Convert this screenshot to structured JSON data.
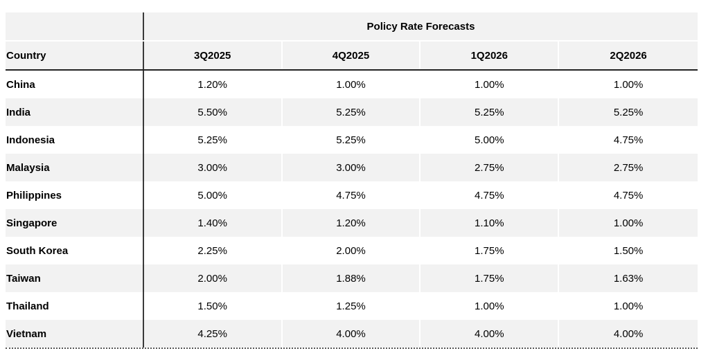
{
  "chart_data": {
    "type": "table",
    "title": "Policy Rate Forecasts",
    "row_header": "Country",
    "columns": [
      "3Q2025",
      "4Q2025",
      "1Q2026",
      "2Q2026"
    ],
    "rows": [
      {
        "country": "China",
        "values": [
          "1.20%",
          "1.00%",
          "1.00%",
          "1.00%"
        ]
      },
      {
        "country": "India",
        "values": [
          "5.50%",
          "5.25%",
          "5.25%",
          "5.25%"
        ]
      },
      {
        "country": "Indonesia",
        "values": [
          "5.25%",
          "5.25%",
          "5.00%",
          "4.75%"
        ]
      },
      {
        "country": "Malaysia",
        "values": [
          "3.00%",
          "3.00%",
          "2.75%",
          "2.75%"
        ]
      },
      {
        "country": "Philippines",
        "values": [
          "5.00%",
          "4.75%",
          "4.75%",
          "4.75%"
        ]
      },
      {
        "country": "Singapore",
        "values": [
          "1.40%",
          "1.20%",
          "1.10%",
          "1.00%"
        ]
      },
      {
        "country": "South Korea",
        "values": [
          "2.25%",
          "2.00%",
          "1.75%",
          "1.50%"
        ]
      },
      {
        "country": "Taiwan",
        "values": [
          "2.00%",
          "1.88%",
          "1.75%",
          "1.63%"
        ]
      },
      {
        "country": "Thailand",
        "values": [
          "1.50%",
          "1.25%",
          "1.00%",
          "1.00%"
        ]
      },
      {
        "country": "Vietnam",
        "values": [
          "4.25%",
          "4.00%",
          "4.00%",
          "4.00%"
        ]
      }
    ]
  }
}
